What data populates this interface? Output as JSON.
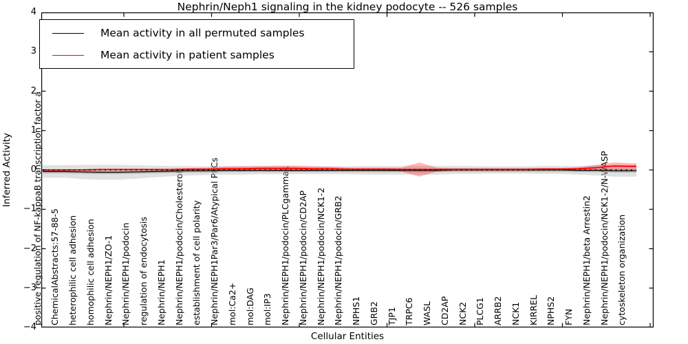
{
  "title": "Nephrin/Neph1 signaling in the kidney podocyte -- 526 samples",
  "legend": {
    "items": [
      {
        "label": "Mean activity in all permuted samples",
        "color": "#000000"
      },
      {
        "label": "Mean activity in patient samples",
        "color": "#ff0000"
      }
    ]
  },
  "axes": {
    "ylabel": "Inferred Activity",
    "xlabel": "Cellular Entities"
  },
  "chart_data": {
    "type": "line",
    "title": "Nephrin/Neph1 signaling in the kidney podocyte -- 526 samples",
    "xlabel": "Cellular Entities",
    "ylabel": "Inferred Activity",
    "ylim": [
      -4,
      4
    ],
    "grid": false,
    "legend_position": "upper left",
    "yticks": [
      {
        "v": 4,
        "label": "4"
      },
      {
        "v": 3,
        "label": "3"
      },
      {
        "v": 2,
        "label": "2"
      },
      {
        "v": 1,
        "label": "1"
      },
      {
        "v": 0,
        "label": "0"
      },
      {
        "v": -1,
        "label": "−1"
      },
      {
        "v": -2,
        "label": "−2"
      },
      {
        "v": -3,
        "label": "−3"
      },
      {
        "v": -4,
        "label": "−4"
      }
    ],
    "categories": [
      "positive regulation of NF-kappaB transcription factor a",
      "ChemicalAbstracts:57-88-5",
      "heterophilic cell adhesion",
      "homophilic cell adhesion",
      "Nephrin/NEPH1/ZO-1",
      "Nephrin/NEPH1/podocin",
      "regulation of endocytosis",
      "Nephrin/NEPH1",
      "Nephrin/NEPH1/podocin/Cholesterol",
      "establishment of cell polarity",
      "Nephrin/NEPH1Par3/Par6/Atypical PKCs",
      "mol:Ca2+",
      "mol:DAG",
      "mol:IP3",
      "Nephrin/NEPH1/podocin/PLCgamma1",
      "Nephrin/NEPH1/podocin/CD2AP",
      "Nephrin/NEPH1/podocin/NCK1-2",
      "Nephrin/NEPH1/podocin/GRB2",
      "NPHS1",
      "GRB2",
      "TJP1",
      "TRPC6",
      "WASL",
      "CD2AP",
      "NCK2",
      "PLCG1",
      "ARRB2",
      "NCK1",
      "KIRREL",
      "NPHS2",
      "FYN",
      "Nephrin/NEPH1/beta Arrestin2",
      "Nephrin/NEPH1/podocin/NCK1-2/N-WASP",
      "cytoskeleton organization"
    ],
    "series": [
      {
        "name": "Mean activity in all permuted samples",
        "color": "#000000",
        "width": 1.3,
        "values": [
          -0.04,
          -0.04,
          -0.05,
          -0.06,
          -0.06,
          -0.05,
          -0.04,
          -0.03,
          -0.02,
          -0.02,
          -0.01,
          -0.01,
          -0.01,
          -0.01,
          -0.01,
          -0.01,
          -0.01,
          -0.01,
          -0.01,
          -0.01,
          -0.01,
          -0.01,
          -0.01,
          0,
          0,
          0,
          0,
          0,
          0,
          0,
          -0.01,
          -0.01,
          -0.02,
          -0.02
        ]
      },
      {
        "name": "Mean activity in patient samples",
        "color": "#ff0000",
        "width": 1.8,
        "values": [
          0,
          0,
          0,
          0.01,
          0.01,
          0.01,
          0.01,
          0.01,
          0.02,
          0.02,
          0.03,
          0.03,
          0.04,
          0.04,
          0.04,
          0.03,
          0.03,
          0.02,
          0.02,
          0.02,
          0.01,
          0.01,
          0.01,
          0.01,
          0.01,
          0.01,
          0.01,
          0.01,
          0.02,
          0.02,
          0.03,
          0.06,
          0.1,
          0.09
        ]
      }
    ],
    "bands": [
      {
        "name": "permuted-samples-spread",
        "center": "permuted",
        "color": "#bdbdbd",
        "opacity": 0.45,
        "half_widths": [
          0.16,
          0.16,
          0.18,
          0.19,
          0.19,
          0.17,
          0.15,
          0.13,
          0.12,
          0.11,
          0.11,
          0.11,
          0.1,
          0.1,
          0.1,
          0.1,
          0.1,
          0.1,
          0.11,
          0.11,
          0.11,
          0.11,
          0.11,
          0.1,
          0.1,
          0.09,
          0.09,
          0.09,
          0.1,
          0.1,
          0.11,
          0.13,
          0.15,
          0.15
        ]
      },
      {
        "name": "permuted-samples-inner",
        "center": "permuted",
        "color": "#8a8a8a",
        "opacity": 0.5,
        "half_width": 0.045
      },
      {
        "name": "patient-samples-spread",
        "center": "patient",
        "color": "#ff0000",
        "opacity": 0.28,
        "half_widths": [
          0.02,
          0.02,
          0.02,
          0.02,
          0.02,
          0.02,
          0.02,
          0.02,
          0.03,
          0.04,
          0.05,
          0.06,
          0.06,
          0.07,
          0.07,
          0.06,
          0.05,
          0.04,
          0.04,
          0.04,
          0.05,
          0.18,
          0.05,
          0.03,
          0.03,
          0.03,
          0.03,
          0.03,
          0.03,
          0.03,
          0.04,
          0.07,
          0.09,
          0.08
        ]
      }
    ],
    "zero_line": {
      "style": "dotted",
      "color": "#000000",
      "y": 0
    }
  }
}
